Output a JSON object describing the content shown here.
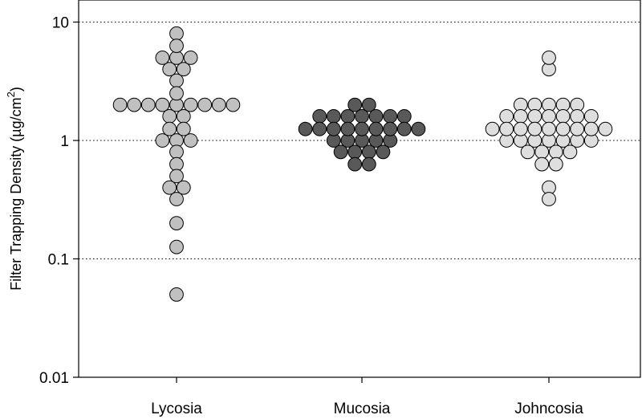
{
  "chart_data": {
    "type": "scatter",
    "subtype": "dot-plot",
    "title": "",
    "xlabel": "",
    "ylabel": {
      "text": "Filter Trapping Density (µg/cm",
      "superscript": "2",
      "suffix": ")"
    },
    "y_scale": "log",
    "ylim": [
      0.01,
      15
    ],
    "y_ticks": [
      {
        "value": 0.01,
        "label": "0.01"
      },
      {
        "value": 0.1,
        "label": "0.1"
      },
      {
        "value": 1,
        "label": "1"
      },
      {
        "value": 10,
        "label": "10"
      }
    ],
    "gridlines": {
      "values": [
        0.1,
        1,
        10
      ],
      "style": "dotted"
    },
    "categories": [
      "Lycosia",
      "Mucosia",
      "Johncosia"
    ],
    "series": [
      {
        "category": "Lycosia",
        "color": "#c0c0c0",
        "values": [
          8,
          6.3,
          5,
          5,
          5,
          4,
          4,
          3.2,
          2.5,
          2,
          2,
          2,
          2,
          2,
          2,
          2,
          2,
          2,
          1.6,
          1.6,
          1.25,
          1.25,
          1,
          1,
          1,
          0.8,
          0.63,
          0.5,
          0.4,
          0.4,
          0.32,
          0.2,
          0.126,
          0.05
        ]
      },
      {
        "category": "Mucosia",
        "color": "#595959",
        "values": [
          2,
          2,
          1.6,
          1.6,
          1.6,
          1.6,
          1.6,
          1.6,
          1.6,
          1.25,
          1.25,
          1.25,
          1.25,
          1.25,
          1.25,
          1.25,
          1.25,
          1.25,
          1,
          1,
          1,
          1,
          1,
          0.8,
          0.8,
          0.8,
          0.8,
          0.63,
          0.63
        ]
      },
      {
        "category": "Johncosia",
        "color": "#dedede",
        "values": [
          5,
          4,
          2,
          2,
          2,
          2,
          2,
          1.6,
          1.6,
          1.6,
          1.6,
          1.6,
          1.6,
          1.6,
          1.25,
          1.25,
          1.25,
          1.25,
          1.25,
          1.25,
          1.25,
          1.25,
          1.25,
          1,
          1,
          1,
          1,
          1,
          1,
          1,
          0.8,
          0.8,
          0.8,
          0.8,
          0.63,
          0.63,
          0.4,
          0.32
        ]
      }
    ],
    "legend": "none",
    "grid": "horizontal dotted"
  }
}
